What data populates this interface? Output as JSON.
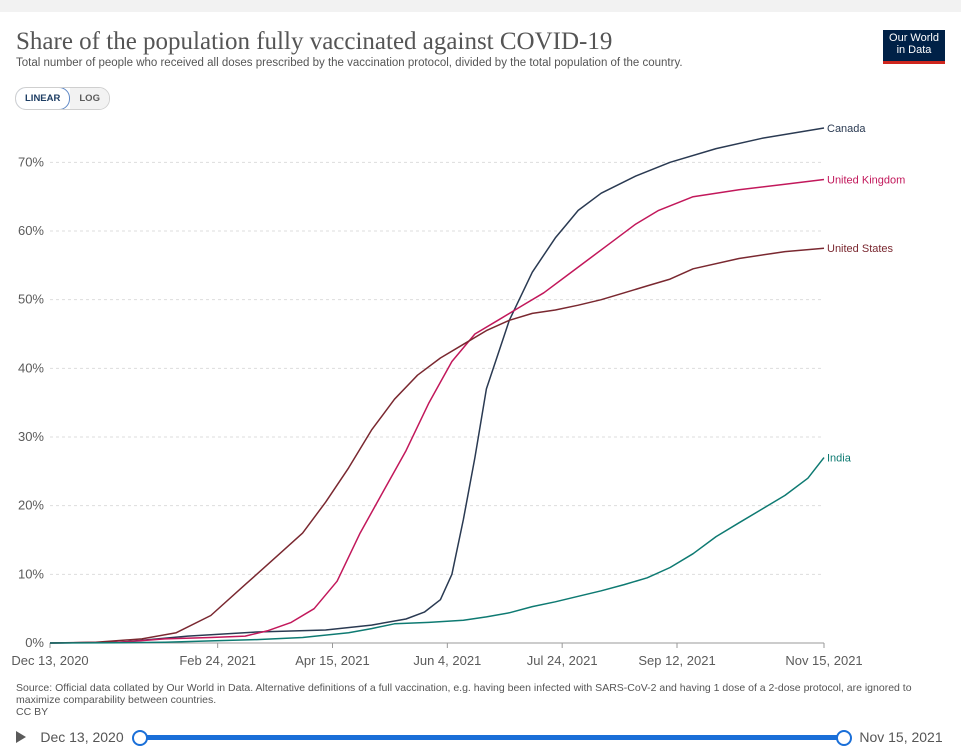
{
  "header": {
    "title": "Share of the population fully vaccinated against COVID-19",
    "subtitle": "Total number of people who received all doses prescribed by the vaccination protocol, divided by the total population of the country.",
    "logo_line1": "Our World",
    "logo_line2": "in Data"
  },
  "controls": {
    "linear_label": "LINEAR",
    "log_label": "LOG"
  },
  "footer": {
    "source": "Source: Official data collated by Our World in Data. Alternative definitions of a full vaccination, e.g. having been infected with SARS-CoV-2 and having 1 dose of a 2-dose protocol, are ignored to maximize comparability between countries.",
    "license": "CC BY"
  },
  "timeline": {
    "start_label": "Dec 13, 2020",
    "end_label": "Nov 15, 2021"
  },
  "colors": {
    "canada": "#2a3a52",
    "united_kingdom": "#c2185b",
    "united_states": "#7a2830",
    "india": "#0e7a72",
    "grid": "#dddddd",
    "axis_text": "#5b5b5b",
    "slider": "#1a6fd8"
  },
  "chart_data": {
    "type": "line",
    "title": "Share of the population fully vaccinated against COVID-19",
    "xlabel": "",
    "ylabel": "",
    "x_unit": "days since Dec 13, 2020",
    "xlim": [
      0,
      337
    ],
    "ylim": [
      0,
      75
    ],
    "y_ticks": [
      0,
      10,
      20,
      30,
      40,
      50,
      60,
      70
    ],
    "y_tick_labels": [
      "0%",
      "10%",
      "20%",
      "30%",
      "40%",
      "50%",
      "60%",
      "70%"
    ],
    "x_ticks": [
      0,
      73,
      123,
      173,
      223,
      273,
      337
    ],
    "x_tick_labels": [
      "Dec 13, 2020",
      "Feb 24, 2021",
      "Apr 15, 2021",
      "Jun 4, 2021",
      "Jul 24, 2021",
      "Sep 12, 2021",
      "Nov 15, 2021"
    ],
    "grid": true,
    "legend": "right-end labels",
    "series": [
      {
        "name": "Canada",
        "color_key": "canada",
        "x": [
          0,
          30,
          60,
          90,
          120,
          140,
          155,
          163,
          170,
          175,
          180,
          185,
          190,
          200,
          210,
          220,
          225,
          230,
          240,
          255,
          270,
          290,
          310,
          337
        ],
        "y": [
          0,
          0.1,
          1.0,
          1.6,
          1.9,
          2.6,
          3.5,
          4.5,
          6.3,
          10,
          18,
          27,
          37,
          47,
          54,
          59,
          61,
          63,
          65.5,
          68,
          70,
          72,
          73.5,
          75
        ]
      },
      {
        "name": "United Kingdom",
        "color_key": "united_kingdom",
        "x": [
          0,
          30,
          50,
          70,
          85,
          95,
          105,
          115,
          125,
          135,
          145,
          155,
          165,
          175,
          185,
          195,
          205,
          215,
          225,
          235,
          245,
          255,
          265,
          280,
          300,
          320,
          337
        ],
        "y": [
          0,
          0.1,
          0.6,
          0.8,
          1.0,
          1.8,
          3.0,
          5.0,
          9.0,
          16,
          22,
          28,
          35,
          41,
          45,
          47,
          49,
          51,
          53.5,
          56,
          58.5,
          61,
          63,
          65,
          66,
          66.8,
          67.5
        ]
      },
      {
        "name": "United States",
        "color_key": "united_states",
        "x": [
          0,
          20,
          40,
          55,
          70,
          85,
          100,
          110,
          120,
          130,
          140,
          150,
          160,
          170,
          180,
          190,
          200,
          210,
          220,
          230,
          240,
          250,
          260,
          270,
          280,
          300,
          320,
          337
        ],
        "y": [
          0,
          0.1,
          0.6,
          1.5,
          4.0,
          8.5,
          13,
          16,
          20.5,
          25.5,
          31,
          35.5,
          39,
          41.5,
          43.5,
          45.5,
          47,
          48,
          48.5,
          49.2,
          50,
          51,
          52,
          53,
          54.5,
          56,
          57,
          57.5
        ]
      },
      {
        "name": "India",
        "color_key": "india",
        "x": [
          0,
          30,
          50,
          70,
          90,
          110,
          130,
          140,
          150,
          165,
          180,
          190,
          200,
          210,
          220,
          230,
          240,
          250,
          260,
          270,
          280,
          290,
          300,
          310,
          320,
          330,
          337
        ],
        "y": [
          0,
          0.05,
          0.1,
          0.3,
          0.5,
          0.8,
          1.5,
          2.1,
          2.8,
          3.0,
          3.3,
          3.8,
          4.4,
          5.3,
          6.0,
          6.8,
          7.6,
          8.5,
          9.5,
          11,
          13,
          15.5,
          17.5,
          19.5,
          21.5,
          24,
          27
        ]
      }
    ]
  }
}
